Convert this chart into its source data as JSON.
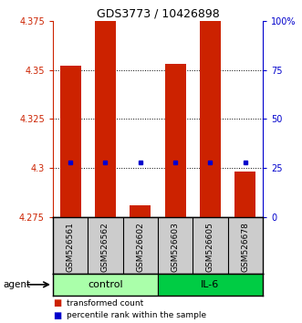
{
  "title": "GDS3773 / 10426898",
  "samples": [
    "GSM526561",
    "GSM526562",
    "GSM526602",
    "GSM526603",
    "GSM526605",
    "GSM526678"
  ],
  "ylim_left": [
    4.275,
    4.375
  ],
  "ylim_right": [
    0,
    100
  ],
  "yticks_left": [
    4.275,
    4.3,
    4.325,
    4.35,
    4.375
  ],
  "yticks_right": [
    0,
    25,
    50,
    75,
    100
  ],
  "ytick_labels_left": [
    "4.275",
    "4.3",
    "4.325",
    "4.35",
    "4.375"
  ],
  "ytick_labels_right": [
    "0",
    "25",
    "50",
    "75",
    "100%"
  ],
  "hlines": [
    4.3,
    4.325,
    4.35
  ],
  "bar_bottoms": [
    4.275,
    4.275,
    4.275,
    4.275,
    4.275,
    4.275
  ],
  "bar_tops": [
    4.352,
    4.375,
    4.281,
    4.353,
    4.375,
    4.298
  ],
  "blue_dots_y": [
    4.303,
    4.303,
    4.303,
    4.303,
    4.303,
    4.303
  ],
  "bar_color": "#cc2200",
  "dot_color": "#0000cc",
  "control_color": "#aaffaa",
  "il6_color": "#00cc44",
  "sample_box_color": "#cccccc",
  "left_axis_color": "#cc2200",
  "right_axis_color": "#0000cc",
  "bar_width": 0.6,
  "legend_red_label": "transformed count",
  "legend_blue_label": "percentile rank within the sample"
}
